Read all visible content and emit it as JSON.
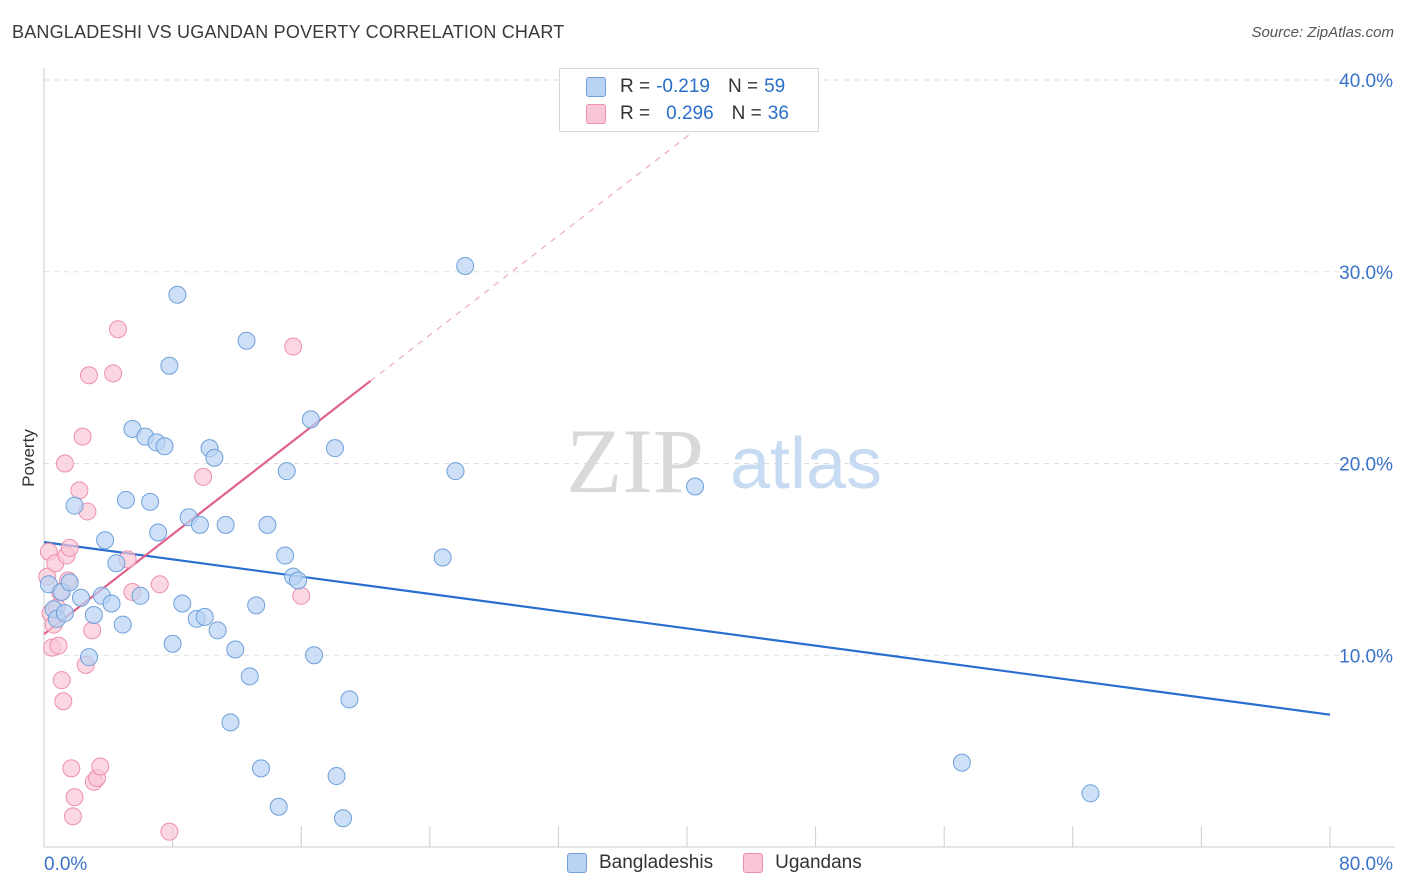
{
  "header": {
    "title": "BANGLADESHI VS UGANDAN POVERTY CORRELATION CHART",
    "source": "Source: ZipAtlas.com"
  },
  "legend_box": {
    "rows": [
      {
        "r_label": "R =",
        "r_value": "-0.219",
        "n_label": "N =",
        "n_value": "59"
      },
      {
        "r_label": "R =",
        "r_value": "0.296",
        "n_label": "N =",
        "n_value": "36"
      }
    ]
  },
  "bottom_legend": {
    "items": [
      {
        "label": "Bangladeshis"
      },
      {
        "label": "Ugandans"
      }
    ]
  },
  "colors": {
    "blue_fill": "#b8d3f3",
    "blue_stroke": "#6fa0db",
    "blue_line": "#2a6fd0",
    "pink_fill": "#f9c6d6",
    "pink_stroke": "#ee8fae",
    "pink_line": "#e0608a",
    "tick_text": "#3a72c8",
    "grid": "#dddddd"
  },
  "chart_data": {
    "type": "scatter",
    "title": "BANGLADESHI VS UGANDAN POVERTY CORRELATION CHART",
    "xlabel": "",
    "ylabel": "Poverty",
    "xlim": [
      0,
      80
    ],
    "ylim": [
      0,
      40
    ],
    "x_tick_labels": [
      "0.0%",
      "80.0%"
    ],
    "y_ticks": [
      10,
      20,
      30,
      40
    ],
    "y_tick_labels": [
      "10.0%",
      "20.0%",
      "30.0%",
      "40.0%"
    ],
    "watermark": "ZIPatlas",
    "series": [
      {
        "name": "Bangladeshis",
        "r": -0.219,
        "n": 59,
        "trend": {
          "x": [
            0,
            80
          ],
          "y": [
            15.9,
            6.9
          ]
        },
        "points": [
          [
            0.3,
            13.7
          ],
          [
            0.6,
            12.4
          ],
          [
            0.8,
            11.9
          ],
          [
            1.1,
            13.3
          ],
          [
            1.3,
            12.2
          ],
          [
            1.6,
            13.8
          ],
          [
            1.9,
            17.8
          ],
          [
            2.3,
            13.0
          ],
          [
            2.8,
            9.9
          ],
          [
            3.1,
            12.1
          ],
          [
            3.6,
            13.1
          ],
          [
            3.8,
            16.0
          ],
          [
            4.2,
            12.7
          ],
          [
            4.5,
            14.8
          ],
          [
            4.9,
            11.6
          ],
          [
            5.1,
            18.1
          ],
          [
            5.5,
            21.8
          ],
          [
            6.0,
            13.1
          ],
          [
            6.3,
            21.4
          ],
          [
            6.6,
            18.0
          ],
          [
            7.0,
            21.1
          ],
          [
            7.1,
            16.4
          ],
          [
            7.5,
            20.9
          ],
          [
            7.8,
            25.1
          ],
          [
            8.0,
            10.6
          ],
          [
            8.3,
            28.8
          ],
          [
            8.6,
            12.7
          ],
          [
            9.0,
            17.2
          ],
          [
            9.5,
            11.9
          ],
          [
            9.7,
            16.8
          ],
          [
            10.0,
            12.0
          ],
          [
            10.3,
            20.8
          ],
          [
            10.6,
            20.3
          ],
          [
            10.8,
            11.3
          ],
          [
            11.3,
            16.8
          ],
          [
            11.6,
            6.5
          ],
          [
            11.9,
            10.3
          ],
          [
            12.6,
            26.4
          ],
          [
            12.8,
            8.9
          ],
          [
            13.2,
            12.6
          ],
          [
            13.5,
            4.1
          ],
          [
            13.9,
            16.8
          ],
          [
            14.6,
            2.1
          ],
          [
            15.0,
            15.2
          ],
          [
            15.1,
            19.6
          ],
          [
            15.5,
            14.1
          ],
          [
            15.8,
            13.9
          ],
          [
            16.6,
            22.3
          ],
          [
            16.8,
            10.0
          ],
          [
            18.1,
            20.8
          ],
          [
            18.2,
            3.7
          ],
          [
            18.6,
            1.5
          ],
          [
            19.0,
            7.7
          ],
          [
            24.8,
            15.1
          ],
          [
            25.6,
            19.6
          ],
          [
            26.2,
            30.3
          ],
          [
            40.5,
            18.8
          ],
          [
            57.1,
            4.4
          ],
          [
            65.1,
            2.8
          ]
        ]
      },
      {
        "name": "Ugandans",
        "r": 0.296,
        "n": 36,
        "trend": {
          "x": [
            0,
            20.3
          ],
          "y": [
            11.1,
            24.3
          ]
        },
        "trend_extended": {
          "x": [
            20.3,
            43
          ],
          "y": [
            24.3,
            39.0
          ]
        },
        "points": [
          [
            0.2,
            14.1
          ],
          [
            0.3,
            15.4
          ],
          [
            0.4,
            12.2
          ],
          [
            0.5,
            10.4
          ],
          [
            0.6,
            11.6
          ],
          [
            0.7,
            14.8
          ],
          [
            0.8,
            12.5
          ],
          [
            0.9,
            10.5
          ],
          [
            1.0,
            13.3
          ],
          [
            1.1,
            8.7
          ],
          [
            1.2,
            7.6
          ],
          [
            1.3,
            20.0
          ],
          [
            1.4,
            15.2
          ],
          [
            1.5,
            13.9
          ],
          [
            1.6,
            15.6
          ],
          [
            1.7,
            4.1
          ],
          [
            1.8,
            1.6
          ],
          [
            1.9,
            2.6
          ],
          [
            2.2,
            18.6
          ],
          [
            2.4,
            21.4
          ],
          [
            2.6,
            9.5
          ],
          [
            2.7,
            17.5
          ],
          [
            2.8,
            24.6
          ],
          [
            3.0,
            11.3
          ],
          [
            3.1,
            3.4
          ],
          [
            3.3,
            3.6
          ],
          [
            3.5,
            4.2
          ],
          [
            4.3,
            24.7
          ],
          [
            4.6,
            27.0
          ],
          [
            5.2,
            15.0
          ],
          [
            5.5,
            13.3
          ],
          [
            7.2,
            13.7
          ],
          [
            7.8,
            0.8
          ],
          [
            9.9,
            19.3
          ],
          [
            15.5,
            26.1
          ],
          [
            16.0,
            13.1
          ]
        ]
      }
    ]
  }
}
